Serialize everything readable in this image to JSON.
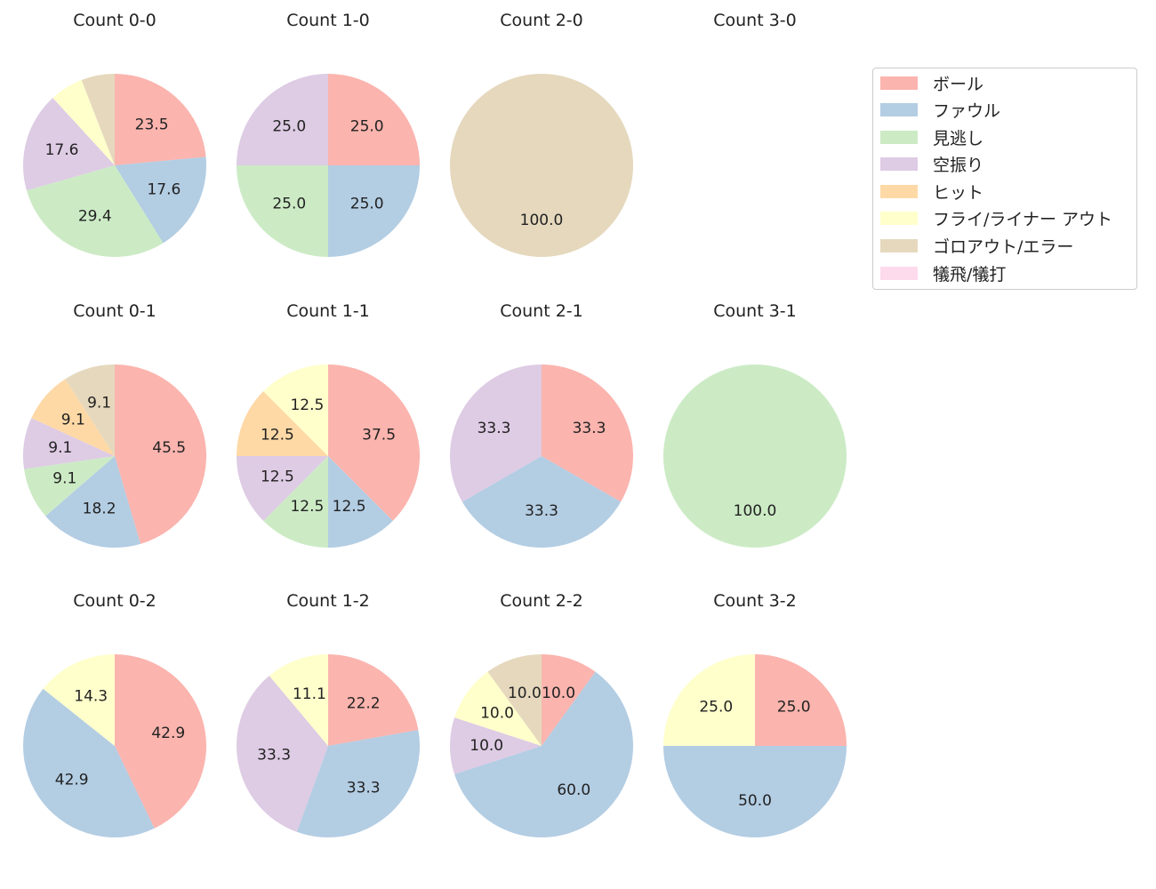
{
  "legend": {
    "items": [
      {
        "label": "ボール",
        "color": "#fbb4ae"
      },
      {
        "label": "ファウル",
        "color": "#b3cde3"
      },
      {
        "label": "見逃し",
        "color": "#ccebc5"
      },
      {
        "label": "空振り",
        "color": "#decbe4"
      },
      {
        "label": "ヒット",
        "color": "#fed9a6"
      },
      {
        "label": "フライ/ライナー アウト",
        "color": "#ffffcc"
      },
      {
        "label": "ゴロアウト/エラー",
        "color": "#e5d8bd"
      },
      {
        "label": "犠飛/犠打",
        "color": "#fddaec"
      }
    ]
  },
  "chart_data": [
    {
      "type": "pie",
      "title": "Count 0-0",
      "values": [
        23.5,
        17.6,
        29.4,
        17.6,
        0,
        5.9,
        5.9,
        0
      ],
      "labels": [
        "23.5",
        "17.6",
        "29.4",
        "17.6",
        "",
        "",
        "",
        ""
      ]
    },
    {
      "type": "pie",
      "title": "Count 1-0",
      "values": [
        25,
        25,
        25,
        25,
        0,
        0,
        0,
        0
      ],
      "labels": [
        "25.0",
        "25.0",
        "25.0",
        "25.0",
        "",
        "",
        "",
        ""
      ]
    },
    {
      "type": "pie",
      "title": "Count 2-0",
      "values": [
        0,
        0,
        0,
        0,
        0,
        0,
        100,
        0
      ],
      "labels": [
        "",
        "",
        "",
        "",
        "",
        "",
        "100.0",
        ""
      ]
    },
    {
      "type": "pie",
      "title": "Count 3-0",
      "values": [],
      "labels": []
    },
    {
      "type": "pie",
      "title": "Count 0-1",
      "values": [
        45.5,
        18.2,
        9.1,
        9.1,
        9.1,
        0,
        9.1,
        0
      ],
      "labels": [
        "45.5",
        "18.2",
        "9.1",
        "9.1",
        "9.1",
        "",
        "9.1",
        ""
      ]
    },
    {
      "type": "pie",
      "title": "Count 1-1",
      "values": [
        37.5,
        12.5,
        12.5,
        12.5,
        12.5,
        12.5,
        0,
        0
      ],
      "labels": [
        "37.5",
        "12.5",
        "12.5",
        "12.5",
        "12.5",
        "12.5",
        "",
        ""
      ]
    },
    {
      "type": "pie",
      "title": "Count 2-1",
      "values": [
        33.3,
        33.3,
        0,
        33.3,
        0,
        0,
        0,
        0
      ],
      "labels": [
        "33.3",
        "33.3",
        "",
        "33.3",
        "",
        "",
        "",
        ""
      ]
    },
    {
      "type": "pie",
      "title": "Count 3-1",
      "values": [
        0,
        0,
        100,
        0,
        0,
        0,
        0,
        0
      ],
      "labels": [
        "",
        "",
        "100.0",
        "",
        "",
        "",
        "",
        ""
      ]
    },
    {
      "type": "pie",
      "title": "Count 0-2",
      "values": [
        42.9,
        42.9,
        0,
        0,
        0,
        14.3,
        0,
        0
      ],
      "labels": [
        "42.9",
        "42.9",
        "",
        "",
        "",
        "14.3",
        "",
        ""
      ]
    },
    {
      "type": "pie",
      "title": "Count 1-2",
      "values": [
        22.2,
        33.3,
        0,
        33.3,
        0,
        11.1,
        0,
        0
      ],
      "labels": [
        "22.2",
        "33.3",
        "",
        "33.3",
        "",
        "11.1",
        "",
        ""
      ]
    },
    {
      "type": "pie",
      "title": "Count 2-2",
      "values": [
        10,
        60,
        0,
        10,
        0,
        10,
        10,
        0
      ],
      "labels": [
        "10.0",
        "60.0",
        "",
        "10.0",
        "",
        "10.0",
        "10.0",
        ""
      ]
    },
    {
      "type": "pie",
      "title": "Count 3-2",
      "values": [
        25,
        50,
        0,
        0,
        0,
        25,
        0,
        0
      ],
      "labels": [
        "25.0",
        "50.0",
        "",
        "",
        "",
        "25.0",
        "",
        ""
      ]
    }
  ]
}
